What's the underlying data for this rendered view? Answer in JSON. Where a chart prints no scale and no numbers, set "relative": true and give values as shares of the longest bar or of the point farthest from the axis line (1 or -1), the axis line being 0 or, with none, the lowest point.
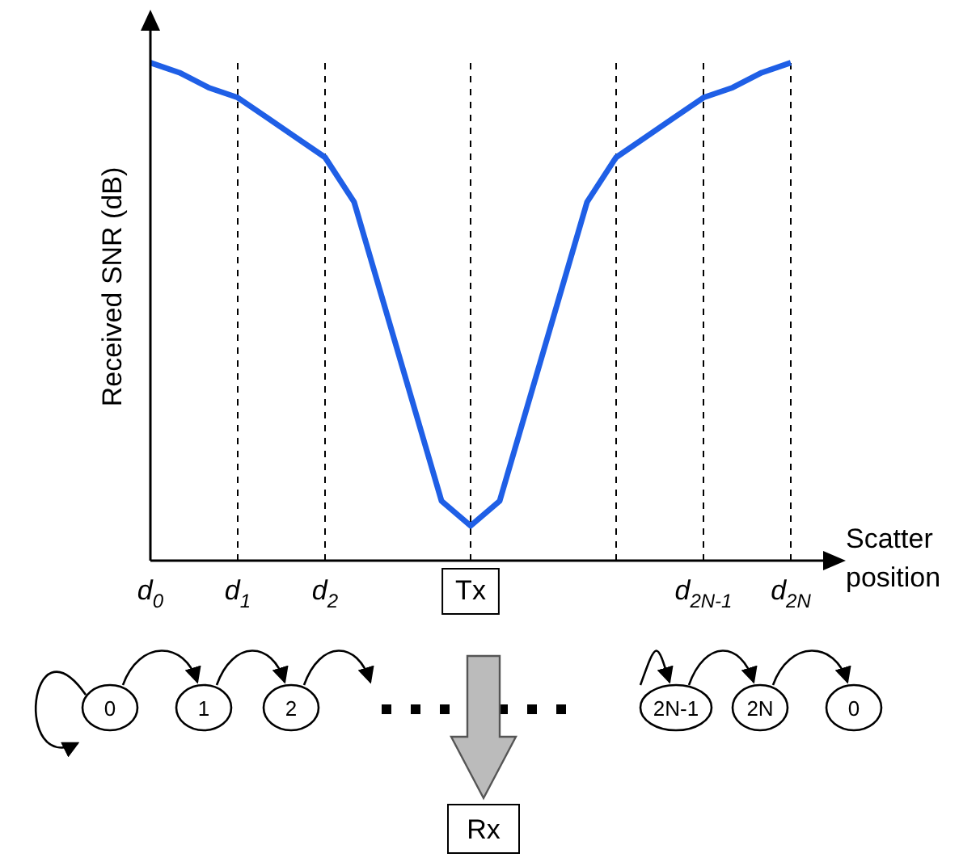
{
  "chart_data": {
    "type": "line",
    "relative": true,
    "xlabel": "Scatter position",
    "ylabel": "Received SNR (dB)",
    "categories": [
      "d$_{0}$",
      null,
      null,
      "d$_{1}$",
      null,
      null,
      "d$_{2}$",
      null,
      null,
      null,
      null,
      "Tx",
      null,
      null,
      null,
      null,
      null,
      null,
      null,
      "d$_{2N-1}$",
      null,
      null,
      "d$_{2N}$"
    ],
    "series": [
      {
        "color": "#1f5fe6",
        "values": [
          1,
          0.98,
          0.95,
          0.93,
          0.89,
          0.85,
          0.81,
          0.72,
          0.52,
          0.32,
          0.12,
          0.07,
          0.12,
          0.32,
          0.52,
          0.72,
          0.81,
          0.85,
          0.89,
          0.93,
          0.95,
          0.98,
          1
        ]
      }
    ],
    "grid": "x",
    "legend": false,
    "marker": "none",
    "line_style": "solid",
    "annotations": [
      "0",
      "1",
      "2",
      "2N-1",
      "2N",
      "0",
      "Rx"
    ]
  }
}
